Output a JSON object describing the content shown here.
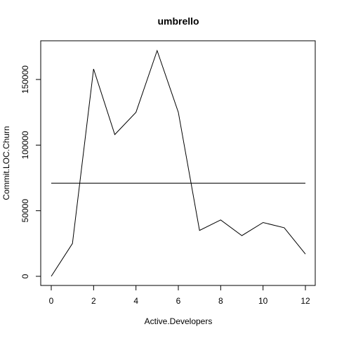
{
  "chart_data": {
    "type": "line",
    "title": "umbrello",
    "xlabel": "Active.Developers",
    "ylabel": "Commit.LOC.Churn",
    "xlim": [
      0,
      12
    ],
    "ylim": [
      0,
      172000
    ],
    "x_ticks": [
      "0",
      "2",
      "4",
      "6",
      "8",
      "10",
      "12"
    ],
    "y_ticks": [
      "0",
      "50000",
      "100000",
      "150000"
    ],
    "grid": false,
    "legend": "none",
    "series": [
      {
        "x": [
          0,
          1,
          2,
          3,
          4,
          5,
          6,
          7,
          8,
          9,
          10,
          11,
          12
        ],
        "values": [
          0,
          25000,
          158000,
          108000,
          125000,
          172000,
          125000,
          35000,
          43000,
          31000,
          41000,
          37000,
          17000
        ]
      }
    ],
    "reference_line": {
      "type": "horizontal",
      "y": 71000
    },
    "colors": {
      "line": "#000000",
      "axis": "#000000",
      "background": "#ffffff"
    }
  }
}
